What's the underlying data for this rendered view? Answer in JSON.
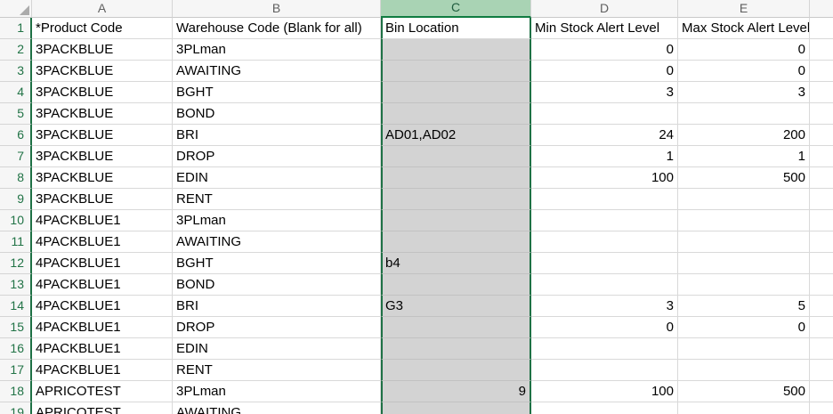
{
  "app": {
    "name": "spreadsheet-grid",
    "selected_column": "C"
  },
  "colors": {
    "accent_green": "#107C41",
    "row_number_green": "#217346",
    "selected_header_fill": "#A9D3B4",
    "selection_shade": "#D3D3D3",
    "gridline": "#D9D9D9",
    "header_fill": "#F6F6F6"
  },
  "sheet": {
    "column_letters": [
      "A",
      "B",
      "C",
      "D",
      "E"
    ],
    "column_keys": [
      "a",
      "b",
      "c",
      "d",
      "e"
    ],
    "header_row": {
      "n": "1",
      "a": "*Product Code",
      "b": "Warehouse Code (Blank for all)",
      "c": "Bin Location",
      "d": "Min Stock Alert Level",
      "e": "Max Stock Alert Level"
    },
    "data_rows": [
      {
        "n": "2",
        "a": "3PACKBLUE",
        "b": "3PLman",
        "c": "",
        "d": "0",
        "e": "0"
      },
      {
        "n": "3",
        "a": "3PACKBLUE",
        "b": "AWAITING",
        "c": "",
        "d": "0",
        "e": "0"
      },
      {
        "n": "4",
        "a": "3PACKBLUE",
        "b": "BGHT",
        "c": "",
        "d": "3",
        "e": "3"
      },
      {
        "n": "5",
        "a": "3PACKBLUE",
        "b": "BOND",
        "c": "",
        "d": "",
        "e": ""
      },
      {
        "n": "6",
        "a": "3PACKBLUE",
        "b": "BRI",
        "c": "AD01,AD02",
        "d": "24",
        "e": "200"
      },
      {
        "n": "7",
        "a": "3PACKBLUE",
        "b": "DROP",
        "c": "",
        "d": "1",
        "e": "1"
      },
      {
        "n": "8",
        "a": "3PACKBLUE",
        "b": "EDIN",
        "c": "",
        "d": "100",
        "e": "500"
      },
      {
        "n": "9",
        "a": "3PACKBLUE",
        "b": "RENT",
        "c": "",
        "d": "",
        "e": ""
      },
      {
        "n": "10",
        "a": "4PACKBLUE1",
        "b": "3PLman",
        "c": "",
        "d": "",
        "e": ""
      },
      {
        "n": "11",
        "a": "4PACKBLUE1",
        "b": "AWAITING",
        "c": "",
        "d": "",
        "e": ""
      },
      {
        "n": "12",
        "a": "4PACKBLUE1",
        "b": "BGHT",
        "c": "b4",
        "d": "",
        "e": ""
      },
      {
        "n": "13",
        "a": "4PACKBLUE1",
        "b": "BOND",
        "c": "",
        "d": "",
        "e": ""
      },
      {
        "n": "14",
        "a": "4PACKBLUE1",
        "b": "BRI",
        "c": "G3",
        "d": "3",
        "e": "5"
      },
      {
        "n": "15",
        "a": "4PACKBLUE1",
        "b": "DROP",
        "c": "",
        "d": "0",
        "e": "0"
      },
      {
        "n": "16",
        "a": "4PACKBLUE1",
        "b": "EDIN",
        "c": "",
        "d": "",
        "e": ""
      },
      {
        "n": "17",
        "a": "4PACKBLUE1",
        "b": "RENT",
        "c": "",
        "d": "",
        "e": ""
      },
      {
        "n": "18",
        "a": "APRICOTEST",
        "b": "3PLman",
        "c": "9",
        "d": "100",
        "e": "500"
      },
      {
        "n": "19",
        "a": "APRICOTEST",
        "b": "AWAITING",
        "c": "",
        "d": "",
        "e": ""
      }
    ]
  }
}
